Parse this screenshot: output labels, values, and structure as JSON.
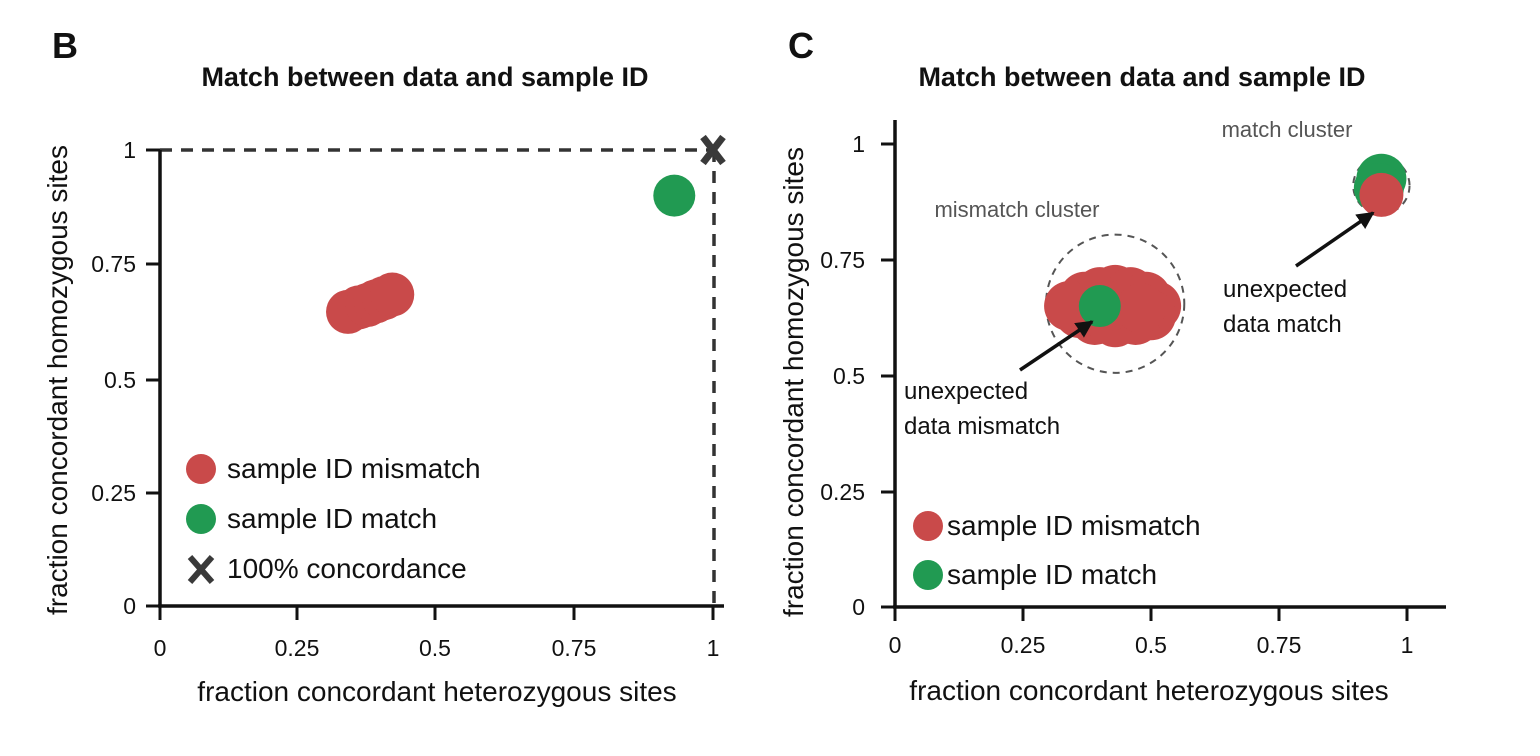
{
  "chart_data": [
    {
      "panel": "B",
      "type": "scatter",
      "title": "Match between data and sample ID",
      "xlabel": "fraction concordant heterozygous sites",
      "ylabel": "fraction concordant homozygous sites",
      "xlim": [
        0,
        1.02
      ],
      "ylim": [
        0,
        1.02
      ],
      "x_ticks": [
        "0",
        "0.25",
        "0.5",
        "0.75",
        "1"
      ],
      "y_ticks": [
        "0",
        "0.25",
        "0.5",
        "0.75",
        "1"
      ],
      "grid": false,
      "series": [
        {
          "name": "sample ID mismatch",
          "color": "#c94a4a",
          "points": [
            {
              "x": 0.34,
              "y": 0.645
            },
            {
              "x": 0.36,
              "y": 0.655
            },
            {
              "x": 0.375,
              "y": 0.66
            },
            {
              "x": 0.39,
              "y": 0.668
            },
            {
              "x": 0.405,
              "y": 0.675
            },
            {
              "x": 0.42,
              "y": 0.683
            }
          ]
        },
        {
          "name": "sample ID match",
          "color": "#219a52",
          "points": [
            {
              "x": 0.93,
              "y": 0.9
            }
          ]
        },
        {
          "name": "100% concordance",
          "color": "#3a3a3a",
          "marker": "x",
          "points": [
            {
              "x": 1.0,
              "y": 1.0
            }
          ]
        }
      ],
      "reference_lines": [
        {
          "orientation": "horizontal",
          "y": 1.0,
          "style": "dashed"
        },
        {
          "orientation": "vertical",
          "x": 1.0,
          "style": "dashed"
        }
      ],
      "legend_position": "bottom-left"
    },
    {
      "panel": "C",
      "type": "scatter",
      "title": "Match between data and sample ID",
      "xlabel": "fraction concordant heterozygous sites",
      "ylabel": "fraction concordant homozygous sites",
      "xlim": [
        0,
        1.08
      ],
      "ylim": [
        0,
        1.04
      ],
      "x_ticks": [
        "0",
        "0.25",
        "0.5",
        "0.75",
        "1"
      ],
      "y_ticks": [
        "0",
        "0.25",
        "0.5",
        "0.75",
        "1"
      ],
      "grid": false,
      "series": [
        {
          "name": "sample ID mismatch",
          "color": "#c94a4a",
          "points": [
            {
              "x": 0.37,
              "y": 0.67
            },
            {
              "x": 0.4,
              "y": 0.68
            },
            {
              "x": 0.43,
              "y": 0.685
            },
            {
              "x": 0.46,
              "y": 0.68
            },
            {
              "x": 0.49,
              "y": 0.67
            },
            {
              "x": 0.51,
              "y": 0.65
            },
            {
              "x": 0.5,
              "y": 0.63
            },
            {
              "x": 0.47,
              "y": 0.62
            },
            {
              "x": 0.43,
              "y": 0.615
            },
            {
              "x": 0.39,
              "y": 0.62
            },
            {
              "x": 0.36,
              "y": 0.635
            },
            {
              "x": 0.34,
              "y": 0.65
            },
            {
              "x": 0.42,
              "y": 0.65
            },
            {
              "x": 0.45,
              "y": 0.655
            },
            {
              "x": 0.48,
              "y": 0.645
            },
            {
              "x": 0.95,
              "y": 0.89
            }
          ]
        },
        {
          "name": "sample ID match",
          "color": "#219a52",
          "points": [
            {
              "x": 0.4,
              "y": 0.65
            },
            {
              "x": 0.95,
              "y": 0.925
            },
            {
              "x": 0.945,
              "y": 0.905
            }
          ]
        }
      ],
      "clusters": [
        {
          "label": "mismatch cluster",
          "cx": 0.43,
          "cy": 0.655,
          "r": 0.135
        },
        {
          "label": "match cluster",
          "cx": 0.95,
          "cy": 0.91,
          "r": 0.055
        }
      ],
      "annotations": [
        {
          "lines": [
            "unexpected",
            "data mismatch"
          ],
          "x": 0.02,
          "y": 0.44,
          "points_to": {
            "x": 0.385,
            "y": 0.625
          }
        },
        {
          "lines": [
            "unexpected",
            "data match"
          ],
          "x": 0.64,
          "y": 0.72,
          "points_to": {
            "x": 0.93,
            "y": 0.86
          }
        }
      ],
      "legend_position": "bottom-left"
    }
  ]
}
